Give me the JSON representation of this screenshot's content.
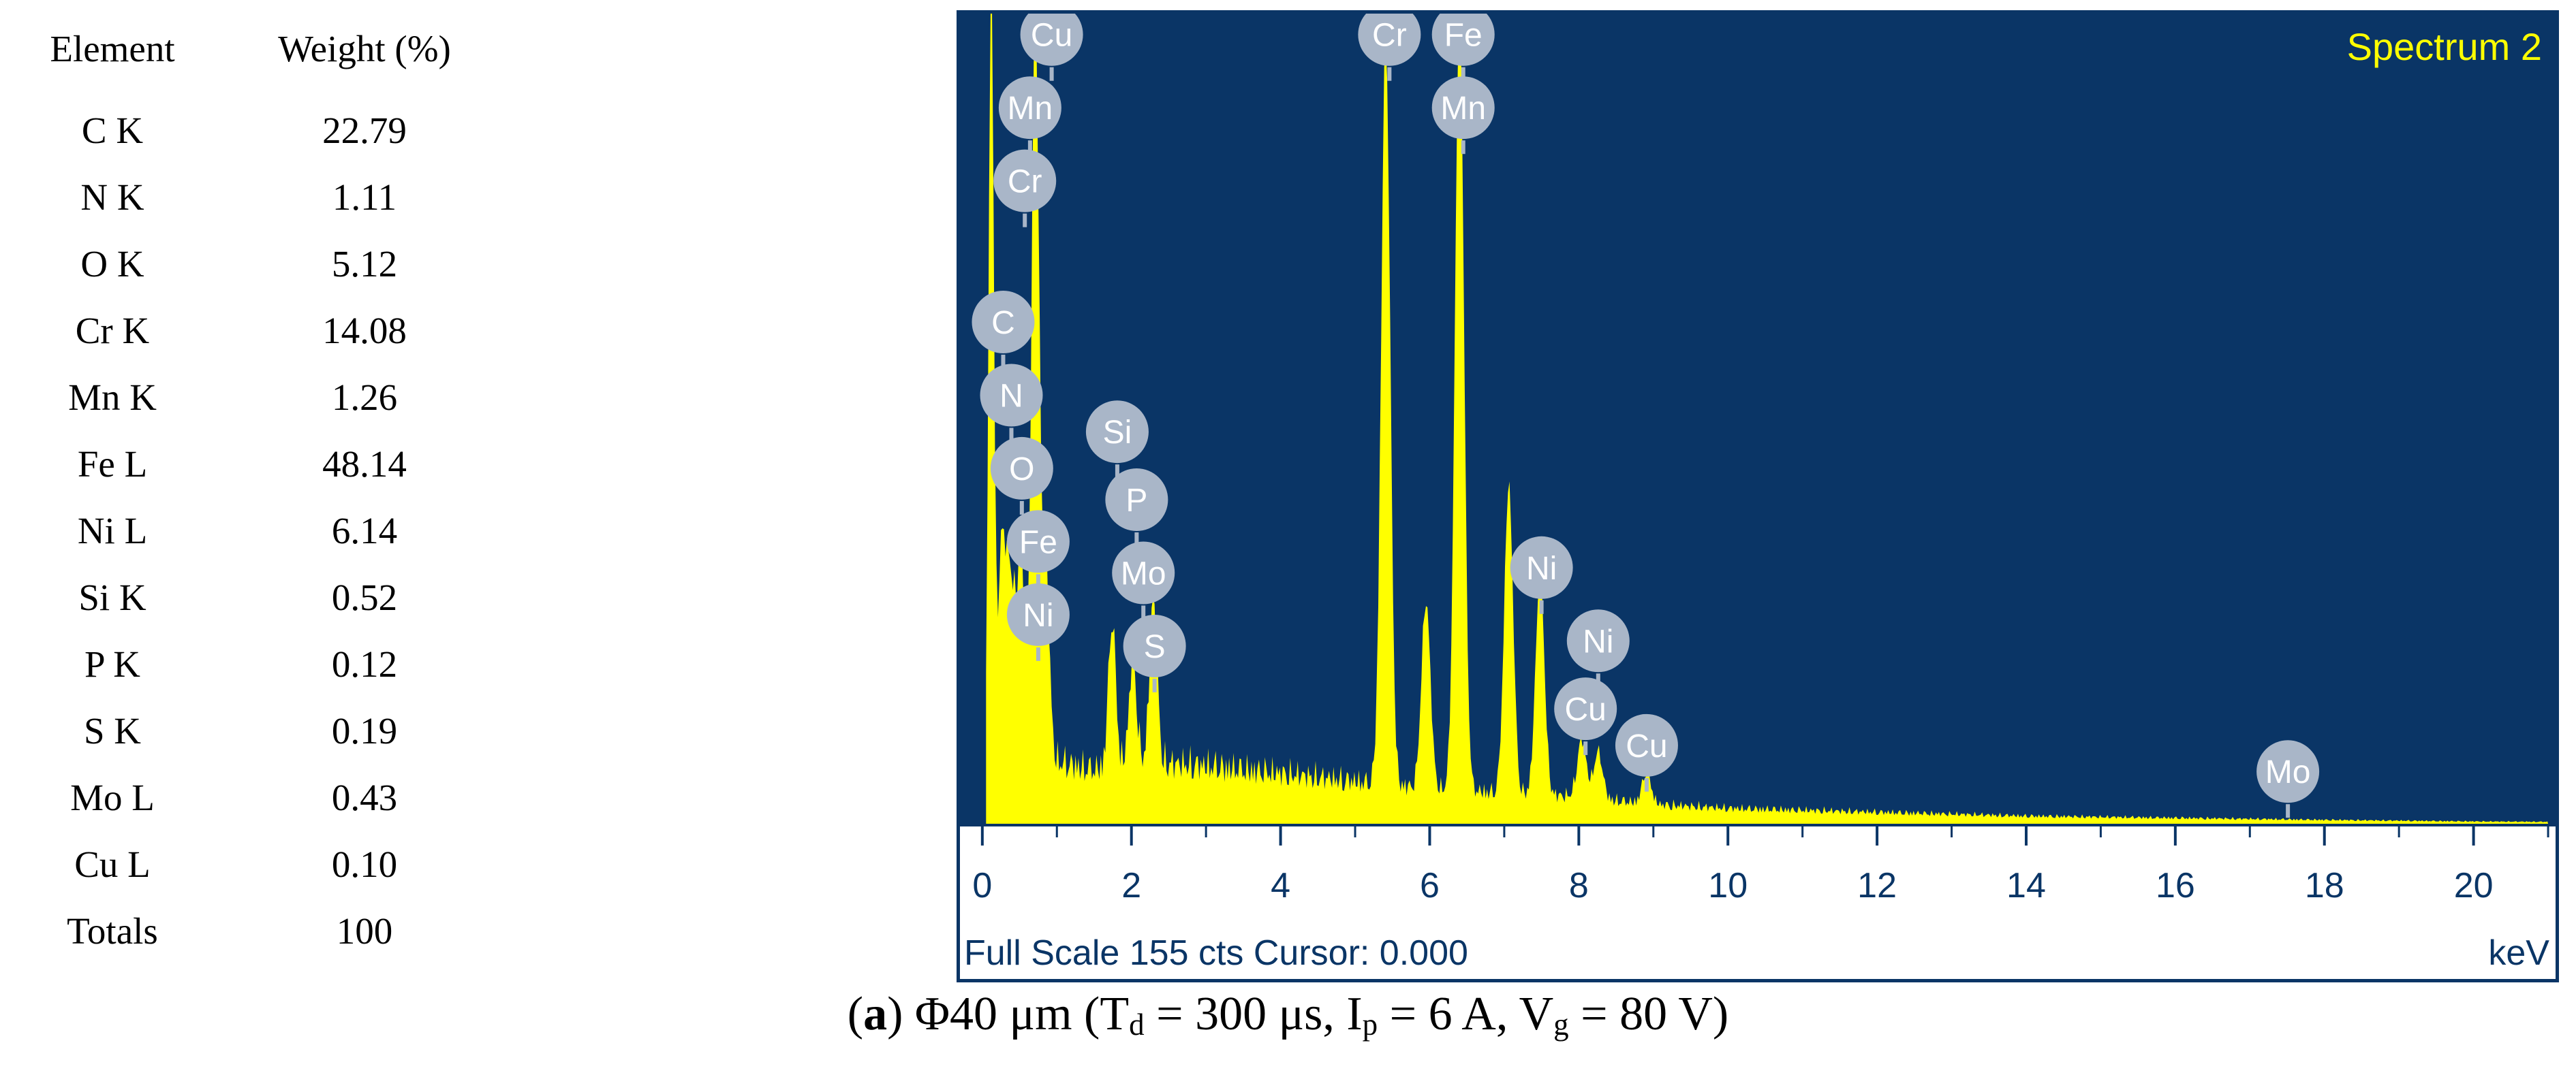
{
  "composition_table": {
    "headers": [
      "Element",
      "Weight (%)"
    ],
    "rows": [
      {
        "element": "C K",
        "weight": "22.79"
      },
      {
        "element": "N K",
        "weight": "1.11"
      },
      {
        "element": "O K",
        "weight": "5.12"
      },
      {
        "element": "Cr K",
        "weight": "14.08"
      },
      {
        "element": "Mn K",
        "weight": "1.26"
      },
      {
        "element": "Fe L",
        "weight": "48.14"
      },
      {
        "element": "Ni L",
        "weight": "6.14"
      },
      {
        "element": "Si K",
        "weight": "0.52"
      },
      {
        "element": "P K",
        "weight": "0.12"
      },
      {
        "element": "S K",
        "weight": "0.19"
      },
      {
        "element": "Mo L",
        "weight": "0.43"
      },
      {
        "element": "Cu L",
        "weight": "0.10"
      },
      {
        "element": "Totals",
        "weight": "100"
      }
    ]
  },
  "chart_data": {
    "type": "area",
    "title": "Spectrum 2",
    "xlabel": "keV",
    "xlim": [
      -0.3,
      21.1
    ],
    "x_ticks": [
      0,
      2,
      4,
      6,
      8,
      10,
      12,
      14,
      16,
      18,
      20
    ],
    "footer": "Full Scale 155 cts Cursor: 0.000",
    "full_scale_cts": 155,
    "plot_background": "#0a3566",
    "fill_color": "#ffff00",
    "label_color": "#ffff00",
    "peaks": [
      {
        "x": 0.12,
        "height": 152,
        "width": 0.035
      },
      {
        "x": 0.26,
        "height": 40,
        "width": 0.05
      },
      {
        "x": 0.38,
        "height": 36,
        "width": 0.06
      },
      {
        "x": 0.52,
        "height": 40,
        "width": 0.05
      },
      {
        "x": 0.71,
        "height": 145,
        "width": 0.05
      },
      {
        "x": 0.85,
        "height": 38,
        "width": 0.05
      },
      {
        "x": 1.74,
        "height": 28,
        "width": 0.05
      },
      {
        "x": 2.02,
        "height": 20,
        "width": 0.05
      },
      {
        "x": 2.29,
        "height": 24,
        "width": 0.05
      },
      {
        "x": 2.31,
        "height": 8,
        "width": 0.05
      },
      {
        "x": 5.41,
        "height": 143,
        "width": 0.06
      },
      {
        "x": 5.95,
        "height": 36,
        "width": 0.06
      },
      {
        "x": 6.4,
        "height": 152,
        "width": 0.06
      },
      {
        "x": 7.06,
        "height": 59,
        "width": 0.06
      },
      {
        "x": 7.48,
        "height": 42,
        "width": 0.06
      },
      {
        "x": 8.04,
        "height": 11,
        "width": 0.06
      },
      {
        "x": 8.26,
        "height": 9,
        "width": 0.06
      },
      {
        "x": 8.91,
        "height": 6,
        "width": 0.06
      }
    ],
    "continuum": [
      [
        0.2,
        15
      ],
      [
        1.0,
        16
      ],
      [
        1.5,
        14
      ],
      [
        2.0,
        16
      ],
      [
        3.0,
        15
      ],
      [
        4.0,
        13
      ],
      [
        5.0,
        11
      ],
      [
        6.0,
        9
      ],
      [
        7.0,
        8
      ],
      [
        8.0,
        7
      ],
      [
        9.0,
        5
      ],
      [
        10.0,
        4
      ],
      [
        12.0,
        3
      ],
      [
        14.0,
        2
      ],
      [
        16.0,
        1.5
      ],
      [
        18.0,
        1
      ],
      [
        20.0,
        0.6
      ],
      [
        21.0,
        0.5
      ]
    ],
    "element_markers": [
      {
        "label": "Cu",
        "x": 0.93,
        "y": 151
      },
      {
        "label": "Mn",
        "x": 0.64,
        "y": 137
      },
      {
        "label": "Cr",
        "x": 0.57,
        "y": 123
      },
      {
        "label": "C",
        "x": 0.28,
        "y": 96
      },
      {
        "label": "N",
        "x": 0.39,
        "y": 82
      },
      {
        "label": "O",
        "x": 0.53,
        "y": 68
      },
      {
        "label": "Fe",
        "x": 0.75,
        "y": 54
      },
      {
        "label": "Ni",
        "x": 0.75,
        "y": 40
      },
      {
        "label": "Si",
        "x": 1.81,
        "y": 75
      },
      {
        "label": "P",
        "x": 2.07,
        "y": 62
      },
      {
        "label": "Mo",
        "x": 2.16,
        "y": 48
      },
      {
        "label": "S",
        "x": 2.31,
        "y": 34
      },
      {
        "label": "Cr",
        "x": 5.46,
        "y": 151
      },
      {
        "label": "Fe",
        "x": 6.45,
        "y": 151
      },
      {
        "label": "Mn",
        "x": 6.45,
        "y": 137
      },
      {
        "label": "Ni",
        "x": 7.5,
        "y": 49
      },
      {
        "label": "Ni",
        "x": 8.26,
        "y": 35
      },
      {
        "label": "Cu",
        "x": 8.09,
        "y": 22
      },
      {
        "label": "Cu",
        "x": 8.91,
        "y": 15
      },
      {
        "label": "Mo",
        "x": 17.51,
        "y": 10
      }
    ]
  },
  "caption": {
    "label": "a",
    "text_1": "Φ40 μm (T",
    "sub_d": "d",
    "text_2": " = 300 μs, I",
    "sub_p": "p",
    "text_3": " = 6 A, V",
    "sub_g": "g",
    "text_4": " = 80 V)"
  }
}
